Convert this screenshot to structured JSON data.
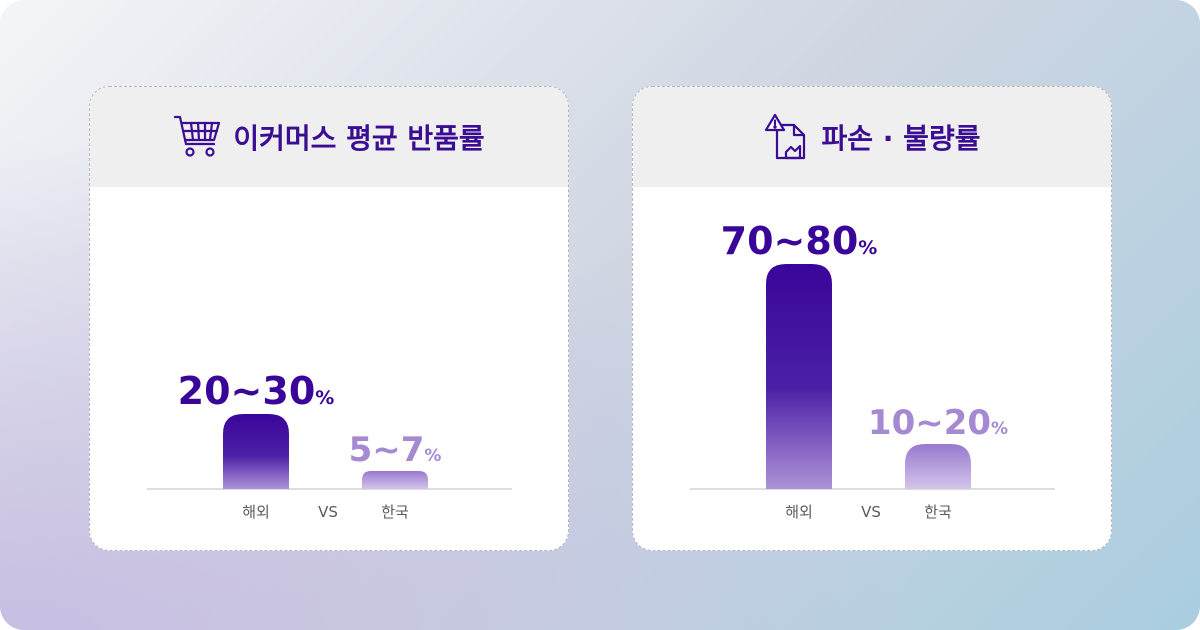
{
  "colors": {
    "accent": "#3a0599",
    "light": "#a58ad3",
    "header_text": "#3a0d92"
  },
  "chart_data": [
    {
      "type": "bar",
      "title": "이커머스 평균 반품률",
      "icon": "shopping-cart-icon",
      "categories": [
        "해외",
        "VS",
        "한국"
      ],
      "series": [
        {
          "values": [
            25,
            null,
            6
          ]
        }
      ],
      "ranges": [
        [
          20,
          30
        ],
        null,
        [
          5,
          7
        ]
      ],
      "value_labels": [
        "20~30",
        null,
        "5~7"
      ],
      "unit": "%",
      "ylim": [
        0,
        100
      ],
      "grid": false
    },
    {
      "type": "bar",
      "title": "파손 · 불량률",
      "icon": "damaged-document-warning-icon",
      "categories": [
        "해외",
        "VS",
        "한국"
      ],
      "series": [
        {
          "values": [
            75,
            null,
            15
          ]
        }
      ],
      "ranges": [
        [
          70,
          80
        ],
        null,
        [
          10,
          20
        ]
      ],
      "value_labels": [
        "70~80",
        null,
        "10~20"
      ],
      "unit": "%",
      "ylim": [
        0,
        100
      ],
      "grid": false
    }
  ]
}
